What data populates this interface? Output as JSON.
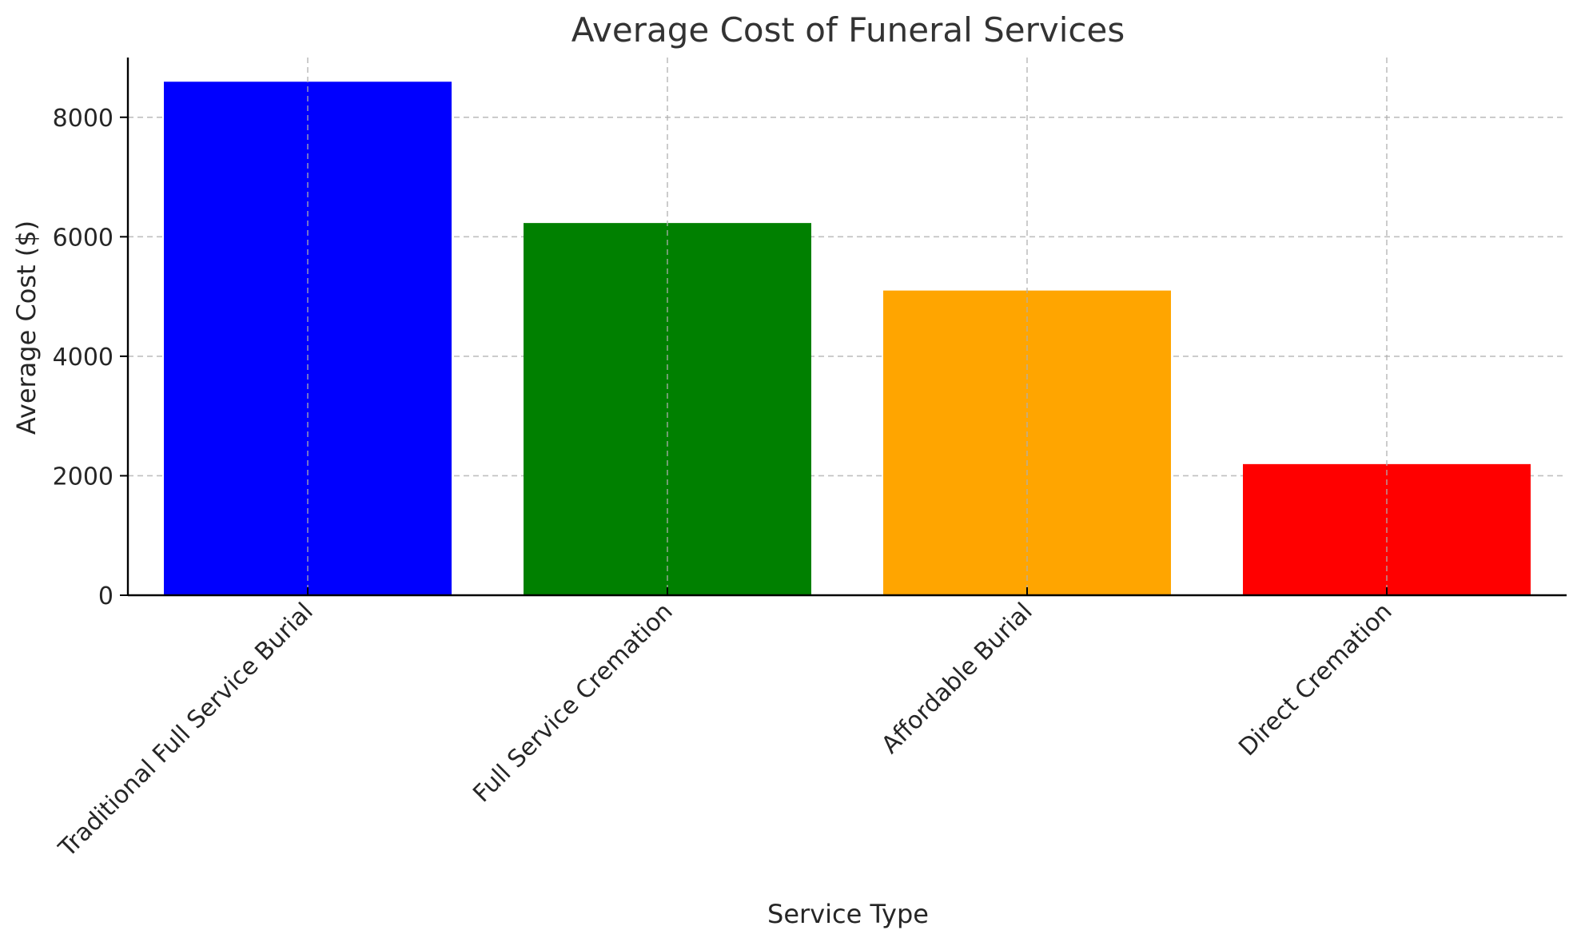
{
  "chart_data": {
    "type": "bar",
    "title": "Average Cost of Funeral Services",
    "xlabel": "Service Type",
    "ylabel": "Average Cost ($)",
    "categories": [
      "Traditional Full Service Burial",
      "Full Service Cremation",
      "Affordable Burial",
      "Direct Cremation"
    ],
    "values": [
      8595,
      6230,
      5100,
      2195
    ],
    "colors": [
      "#0000ff",
      "#008000",
      "#ffa500",
      "#ff0000"
    ],
    "ylim": [
      0,
      9000
    ],
    "yticks": [
      0,
      2000,
      4000,
      6000,
      8000
    ],
    "ytick_labels": [
      "0",
      "2000",
      "4000",
      "6000",
      "8000"
    ],
    "grid": true,
    "legend": false
  }
}
